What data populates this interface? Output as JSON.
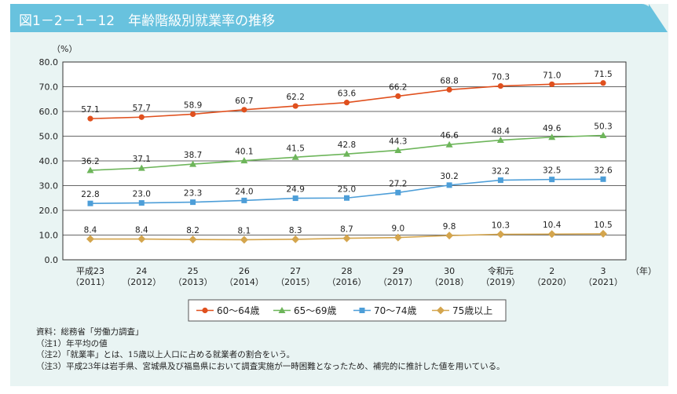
{
  "title": "図1－2－1－12　年齢階級別就業率の推移",
  "chart_data": {
    "type": "line",
    "ylabel": "（%）",
    "xlabel": "（年）",
    "ylim": [
      0,
      80
    ],
    "yticks": [
      "0.0",
      "10.0",
      "20.0",
      "30.0",
      "40.0",
      "50.0",
      "60.0",
      "70.0",
      "80.0"
    ],
    "grid": true,
    "legend_position": "bottom",
    "categories": [
      {
        "top": "平成23",
        "bottom": "（2011）"
      },
      {
        "top": "24",
        "bottom": "（2012）"
      },
      {
        "top": "25",
        "bottom": "（2013）"
      },
      {
        "top": "26",
        "bottom": "（2014）"
      },
      {
        "top": "27",
        "bottom": "（2015）"
      },
      {
        "top": "28",
        "bottom": "（2016）"
      },
      {
        "top": "29",
        "bottom": "（2017）"
      },
      {
        "top": "30",
        "bottom": "（2018）"
      },
      {
        "top": "令和元",
        "bottom": "（2019）"
      },
      {
        "top": "2",
        "bottom": "（2020）"
      },
      {
        "top": "3",
        "bottom": "（2021）"
      }
    ],
    "series": [
      {
        "name": "60～64歳",
        "color": "#e0501e",
        "marker": "circle",
        "values": [
          57.1,
          57.7,
          58.9,
          60.7,
          62.2,
          63.6,
          66.2,
          68.8,
          70.3,
          71.0,
          71.5
        ]
      },
      {
        "name": "65～69歳",
        "color": "#6db55a",
        "marker": "triangle",
        "values": [
          36.2,
          37.1,
          38.7,
          40.1,
          41.5,
          42.8,
          44.3,
          46.6,
          48.4,
          49.6,
          50.3
        ]
      },
      {
        "name": "70～74歳",
        "color": "#4d9ed8",
        "marker": "square",
        "values": [
          22.8,
          23.0,
          23.3,
          24.0,
          24.9,
          25.0,
          27.2,
          30.2,
          32.2,
          32.5,
          32.6
        ]
      },
      {
        "name": "75歳以上",
        "color": "#d4a54d",
        "marker": "diamond",
        "values": [
          8.4,
          8.4,
          8.2,
          8.1,
          8.3,
          8.7,
          9.0,
          9.8,
          10.3,
          10.4,
          10.5
        ]
      }
    ]
  },
  "notes": [
    "資料：総務省「労働力調査」",
    "（注1）年平均の値",
    "（注2）「就業率」とは、15歳以上人口に占める就業者の割合をいう。",
    "（注3）平成23年は岩手県、宮城県及び福島県において調査実施が一時困難となったため、補完的に推計した値を用いている。"
  ]
}
